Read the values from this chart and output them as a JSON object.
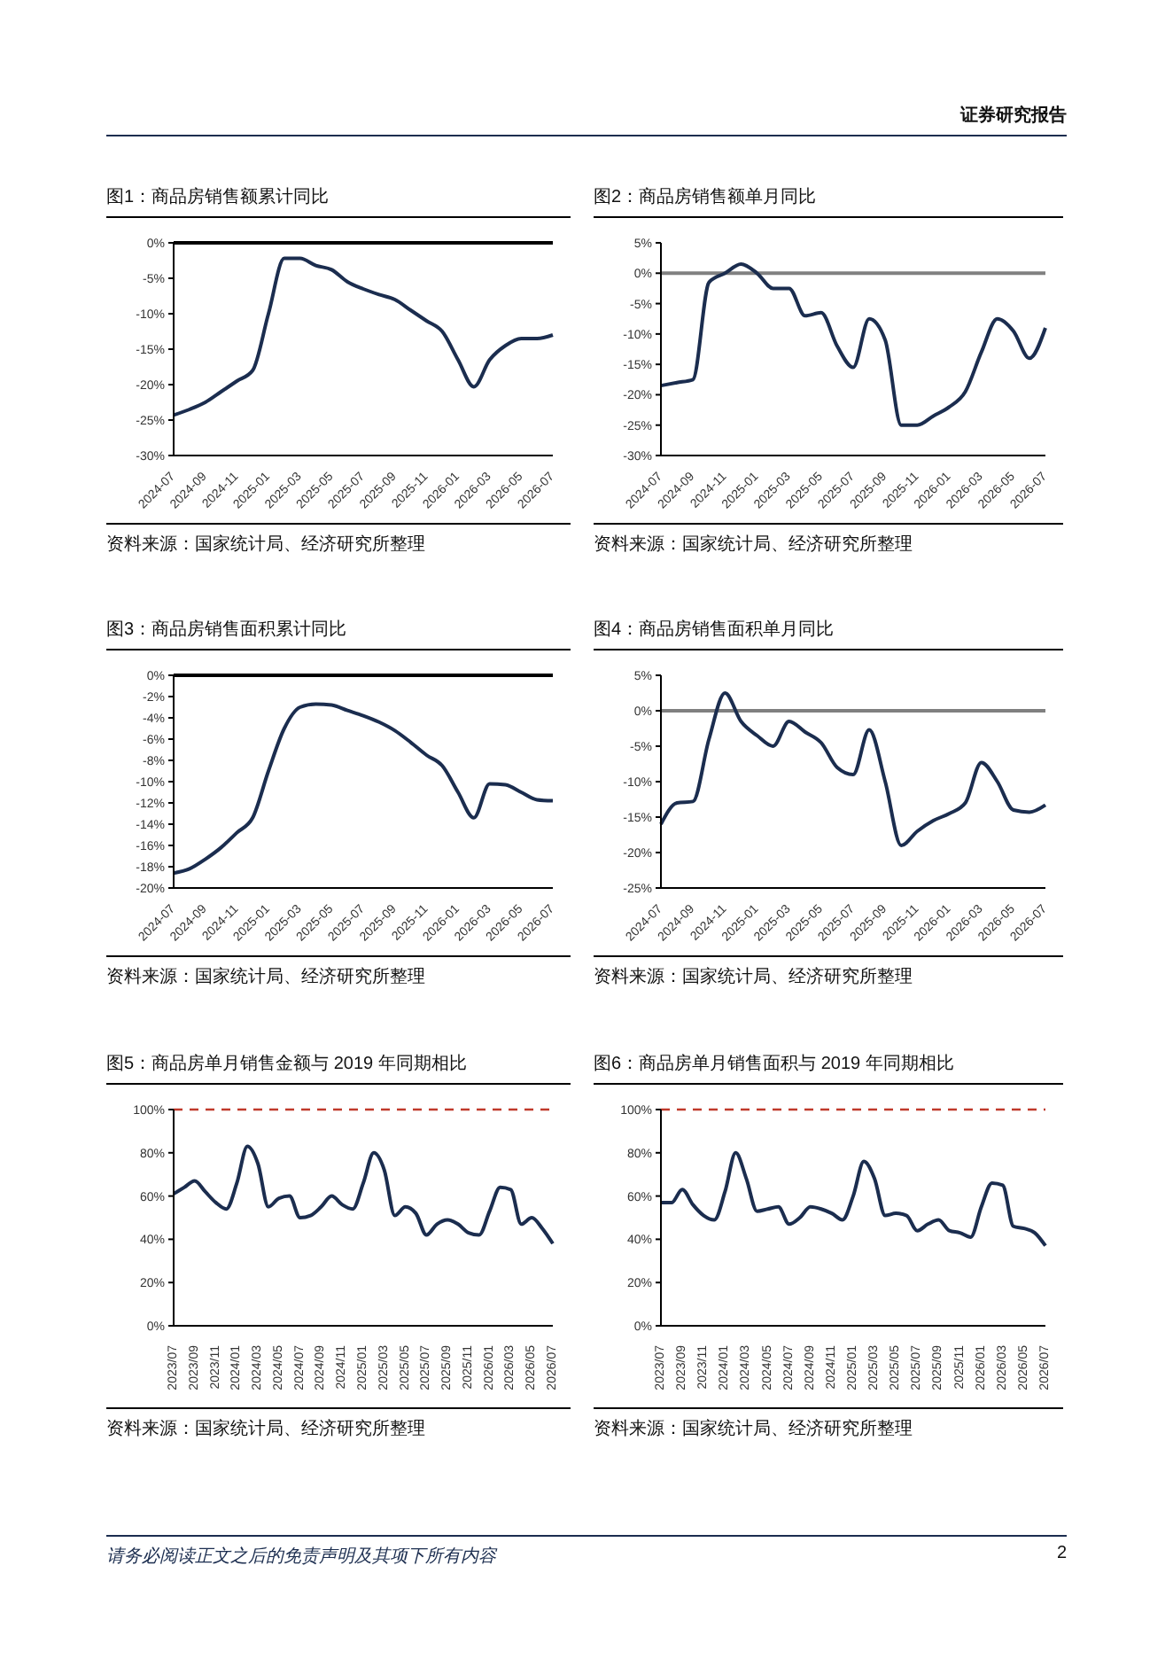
{
  "chart_data": [
    {
      "type": "line",
      "title": "图1：商品房销售额累计同比",
      "annotations": [
        "资料来源：国家统计局、经济研究所整理",
        "证券研究报告"
      ],
      "categories": [
        "2024-07",
        null,
        "2024-09",
        null,
        "2024-11",
        null,
        "2025-01",
        null,
        "2025-03",
        null,
        "2025-05",
        null,
        "2025-07",
        null,
        "2025-09",
        null,
        "2025-11",
        null,
        "2026-01",
        null,
        "2026-03",
        null,
        "2026-05",
        null,
        "2026-07"
      ],
      "series": [
        {
          "color": "#1b2d4f",
          "values": [
            -24.3,
            -23.5,
            -22.5,
            -21,
            -19.5,
            -18,
            -10,
            -2.2,
            -2.2,
            -3.2,
            -3.8,
            -5.5,
            -6.5,
            -7.3,
            -8,
            -9.5,
            -11,
            -12.5,
            -16.5,
            -20.3,
            -16.5,
            -14.5,
            -13.5,
            -13.5,
            -13
          ]
        }
      ],
      "ylim": [
        -30,
        0
      ],
      "yticks": [
        {
          "value": -30,
          "label": "-30%"
        },
        {
          "value": -25,
          "label": "-25%"
        },
        {
          "value": -20,
          "label": "-20%"
        },
        {
          "value": -15,
          "label": "-15%"
        },
        {
          "value": -10,
          "label": "-10%"
        },
        {
          "value": -5,
          "label": "-5%"
        },
        {
          "value": 0,
          "label": "0%"
        }
      ],
      "ref_lines": [
        {
          "axis": "y",
          "value": 0,
          "color": "#000000"
        }
      ]
    },
    {
      "type": "line",
      "title": "图2：商品房销售额单月同比",
      "annotations": [
        "资料来源：国家统计局、经济研究所整理"
      ],
      "categories": [
        "2024-07",
        null,
        "2024-09",
        null,
        "2024-11",
        null,
        "2025-01",
        null,
        "2025-03",
        null,
        "2025-05",
        null,
        "2025-07",
        null,
        "2025-09",
        null,
        "2025-11",
        null,
        "2026-01",
        null,
        "2026-03",
        null,
        "2026-05",
        null,
        "2026-07"
      ],
      "series": [
        {
          "color": "#1b2d4f",
          "values": [
            -18.5,
            -18,
            -17.5,
            -1.5,
            0,
            1.5,
            0,
            -2.5,
            -2.5,
            -7,
            -6.5,
            -12,
            -15.5,
            -7.5,
            -11,
            -25,
            -25,
            -23.5,
            -22,
            -19.5,
            -13,
            -7.5,
            -9.5,
            -14,
            -9
          ]
        }
      ],
      "ylim": [
        -30,
        5
      ],
      "yticks": [
        {
          "value": -30,
          "label": "-30%"
        },
        {
          "value": -25,
          "label": "-25%"
        },
        {
          "value": -20,
          "label": "-20%"
        },
        {
          "value": -15,
          "label": "-15%"
        },
        {
          "value": -10,
          "label": "-10%"
        },
        {
          "value": -5,
          "label": "-5%"
        },
        {
          "value": 0,
          "label": "0%"
        },
        {
          "value": 5,
          "label": "5%"
        }
      ],
      "ref_lines": [
        {
          "axis": "y",
          "value": 0,
          "color": "#808080"
        }
      ]
    },
    {
      "type": "line",
      "title": "图3：商品房销售面积累计同比",
      "annotations": [
        "资料来源：国家统计局、经济研究所整理"
      ],
      "categories": [
        "2024-07",
        null,
        "2024-09",
        null,
        "2024-11",
        null,
        "2025-01",
        null,
        "2025-03",
        null,
        "2025-05",
        null,
        "2025-07",
        null,
        "2025-09",
        null,
        "2025-11",
        null,
        "2026-01",
        null,
        "2026-03",
        null,
        "2026-05",
        null,
        "2026-07"
      ],
      "series": [
        {
          "color": "#1b2d4f",
          "values": [
            -18.6,
            -18.2,
            -17.3,
            -16.2,
            -14.8,
            -13.4,
            -9,
            -5,
            -3,
            -2.7,
            -2.8,
            -3.3,
            -3.8,
            -4.4,
            -5.2,
            -6.3,
            -7.5,
            -8.5,
            -11,
            -13.4,
            -10.2,
            -10.3,
            -11,
            -11.7,
            -11.8
          ]
        }
      ],
      "ylim": [
        -20,
        0
      ],
      "yticks": [
        {
          "value": -20,
          "label": "-20%"
        },
        {
          "value": -18,
          "label": "-18%"
        },
        {
          "value": -16,
          "label": "-16%"
        },
        {
          "value": -14,
          "label": "-14%"
        },
        {
          "value": -12,
          "label": "-12%"
        },
        {
          "value": -10,
          "label": "-10%"
        },
        {
          "value": -8,
          "label": "-8%"
        },
        {
          "value": -6,
          "label": "-6%"
        },
        {
          "value": -4,
          "label": "-4%"
        },
        {
          "value": -2,
          "label": "-2%"
        },
        {
          "value": 0,
          "label": "0%"
        }
      ],
      "ref_lines": [
        {
          "axis": "y",
          "value": 0,
          "color": "#000000"
        }
      ]
    },
    {
      "type": "line",
      "title": "图4：商品房销售面积单月同比",
      "annotations": [
        "资料来源：国家统计局、经济研究所整理"
      ],
      "categories": [
        "2024-07",
        null,
        "2024-09",
        null,
        "2024-11",
        null,
        "2025-01",
        null,
        "2025-03",
        null,
        "2025-05",
        null,
        "2025-07",
        null,
        "2025-09",
        null,
        "2025-11",
        null,
        "2026-01",
        null,
        "2026-03",
        null,
        "2026-05",
        null,
        "2026-07"
      ],
      "series": [
        {
          "color": "#1b2d4f",
          "values": [
            -16,
            -13,
            -12.8,
            -4,
            2.5,
            -1.5,
            -3.5,
            -5,
            -1.5,
            -3,
            -4.5,
            -8,
            -9,
            -2.7,
            -10,
            -19,
            -17,
            -15.5,
            -14.5,
            -13,
            -7.3,
            -10,
            -14,
            -14.3,
            -13.3
          ]
        }
      ],
      "ylim": [
        -25,
        5
      ],
      "yticks": [
        {
          "value": -25,
          "label": "-25%"
        },
        {
          "value": -20,
          "label": "-20%"
        },
        {
          "value": -15,
          "label": "-15%"
        },
        {
          "value": -10,
          "label": "-10%"
        },
        {
          "value": -5,
          "label": "-5%"
        },
        {
          "value": 0,
          "label": "0%"
        },
        {
          "value": 5,
          "label": "5%"
        }
      ],
      "ref_lines": [
        {
          "axis": "y",
          "value": 0,
          "color": "#808080"
        }
      ]
    },
    {
      "type": "line",
      "title": "图5：商品房单月销售金额与 2019 年同期相比",
      "annotations": [
        "资料来源：国家统计局、经济研究所整理"
      ],
      "categories": [
        "2023/07",
        null,
        "2023/09",
        null,
        "2023/11",
        null,
        "2024/01",
        null,
        "2024/03",
        null,
        "2024/05",
        null,
        "2024/07",
        null,
        "2024/09",
        null,
        "2024/11",
        null,
        "2025/01",
        null,
        "2025/03",
        null,
        "2025/05",
        null,
        "2025/07",
        null,
        "2025/09",
        null,
        "2025/11",
        null,
        "2026/01",
        null,
        "2026/03",
        null,
        "2026/05",
        null,
        "2026/07"
      ],
      "series": [
        {
          "color": "#1b2d4f",
          "values": [
            61,
            64,
            67,
            62,
            57,
            54,
            66,
            83,
            75,
            55,
            59,
            60,
            50,
            51,
            55,
            60,
            56,
            54,
            66,
            80,
            72,
            51,
            55,
            52,
            42,
            47,
            49,
            47,
            43,
            42,
            53,
            64,
            63,
            47,
            50,
            45,
            38
          ]
        }
      ],
      "ylim": [
        0,
        100
      ],
      "yticks": [
        {
          "value": 0,
          "label": "0%"
        },
        {
          "value": 20,
          "label": "20%"
        },
        {
          "value": 40,
          "label": "40%"
        },
        {
          "value": 60,
          "label": "60%"
        },
        {
          "value": 80,
          "label": "80%"
        },
        {
          "value": 100,
          "label": "100%"
        }
      ],
      "ref_lines": [
        {
          "axis": "y",
          "value": 100,
          "color": "#c0392b",
          "line_style": "dashed"
        }
      ]
    },
    {
      "type": "line",
      "title": "图6：商品房单月销售面积与 2019 年同期相比",
      "annotations": [
        "资料来源：国家统计局、经济研究所整理",
        "请务必阅读正文之后的免责声明及其项下所有内容",
        "2"
      ],
      "categories": [
        "2023/07",
        null,
        "2023/09",
        null,
        "2023/11",
        null,
        "2024/01",
        null,
        "2024/03",
        null,
        "2024/05",
        null,
        "2024/07",
        null,
        "2024/09",
        null,
        "2024/11",
        null,
        "2025/01",
        null,
        "2025/03",
        null,
        "2025/05",
        null,
        "2025/07",
        null,
        "2025/09",
        null,
        "2025/11",
        null,
        "2026/01",
        null,
        "2026/03",
        null,
        "2026/05",
        null,
        "2026/07"
      ],
      "series": [
        {
          "color": "#1b2d4f",
          "values": [
            57,
            57,
            63,
            56,
            51,
            49,
            62,
            80,
            68,
            53,
            54,
            55,
            47,
            50,
            55,
            54,
            52,
            49,
            60,
            76,
            68,
            51,
            52,
            51,
            44,
            47,
            49,
            44,
            43,
            41,
            55,
            66,
            65,
            46,
            45,
            43,
            37
          ]
        }
      ],
      "ylim": [
        0,
        100
      ],
      "yticks": [
        {
          "value": 0,
          "label": "0%"
        },
        {
          "value": 20,
          "label": "20%"
        },
        {
          "value": 40,
          "label": "40%"
        },
        {
          "value": 60,
          "label": "60%"
        },
        {
          "value": 80,
          "label": "80%"
        },
        {
          "value": 100,
          "label": "100%"
        }
      ],
      "ref_lines": [
        {
          "axis": "y",
          "value": 100,
          "color": "#c0392b",
          "line_style": "dashed"
        }
      ]
    }
  ]
}
